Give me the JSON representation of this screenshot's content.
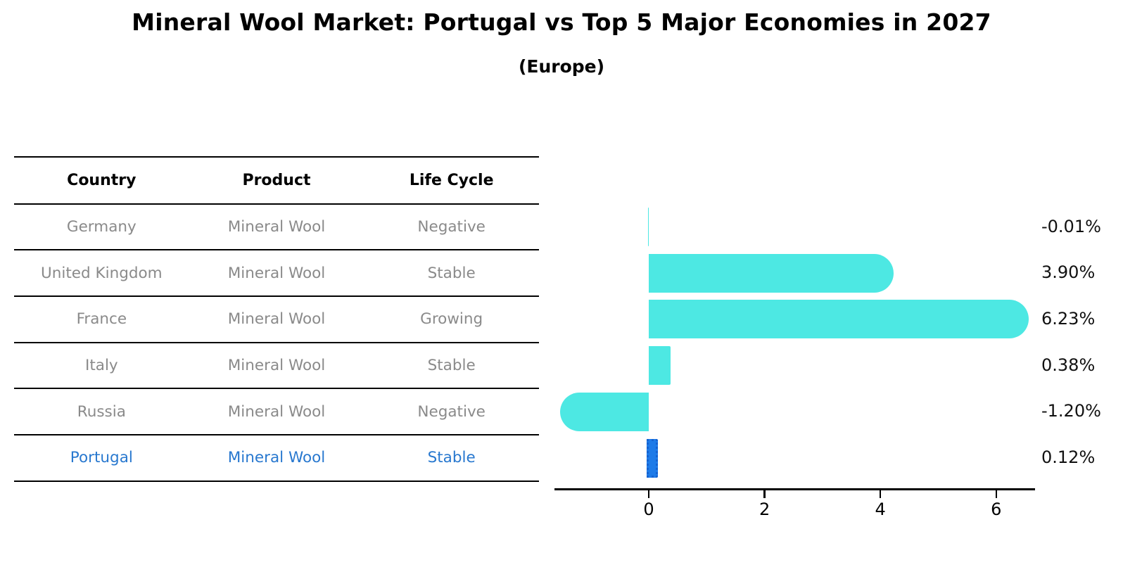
{
  "header": {
    "title": "Mineral Wool Market: Portugal vs Top 5 Major Economies in 2027",
    "subtitle": "(Europe)"
  },
  "table": {
    "columns": [
      "Country",
      "Product",
      "Life Cycle"
    ],
    "rows": [
      {
        "country": "Germany",
        "product": "Mineral Wool",
        "life_cycle": "Negative",
        "highlight": false
      },
      {
        "country": "United Kingdom",
        "product": "Mineral Wool",
        "life_cycle": "Stable",
        "highlight": false
      },
      {
        "country": "France",
        "product": "Mineral Wool",
        "life_cycle": "Growing",
        "highlight": false
      },
      {
        "country": "Italy",
        "product": "Mineral Wool",
        "life_cycle": "Stable",
        "highlight": false
      },
      {
        "country": "Russia",
        "product": "Mineral Wool",
        "life_cycle": "Negative",
        "highlight": false
      },
      {
        "country": "Portugal",
        "product": "Mineral Wool",
        "life_cycle": "Stable",
        "highlight": true
      }
    ]
  },
  "chart_data": {
    "type": "bar",
    "orientation": "horizontal",
    "title": "Mineral Wool Market: Portugal vs Top 5 Major Economies in 2027",
    "subtitle": "(Europe)",
    "categories": [
      "Germany",
      "United Kingdom",
      "France",
      "Italy",
      "Russia",
      "Portugal"
    ],
    "values": [
      -0.01,
      3.9,
      6.23,
      0.38,
      -1.2,
      0.12
    ],
    "value_labels": [
      "-0.01%",
      "3.90%",
      "6.23%",
      "0.38%",
      "-1.20%",
      "0.12%"
    ],
    "unit": "percent",
    "x_ticks": [
      0,
      2,
      4,
      6
    ],
    "xlim": [
      -1.63,
      6.66
    ],
    "grid": false,
    "legend": false,
    "highlight_category": "Portugal",
    "bar_color": "#4de8e3",
    "highlight_bar_color": "#1e7be8",
    "highlight_text_color": "#2878cf",
    "table_text_color": "#8a8a8a",
    "axis_color": "#000000"
  }
}
